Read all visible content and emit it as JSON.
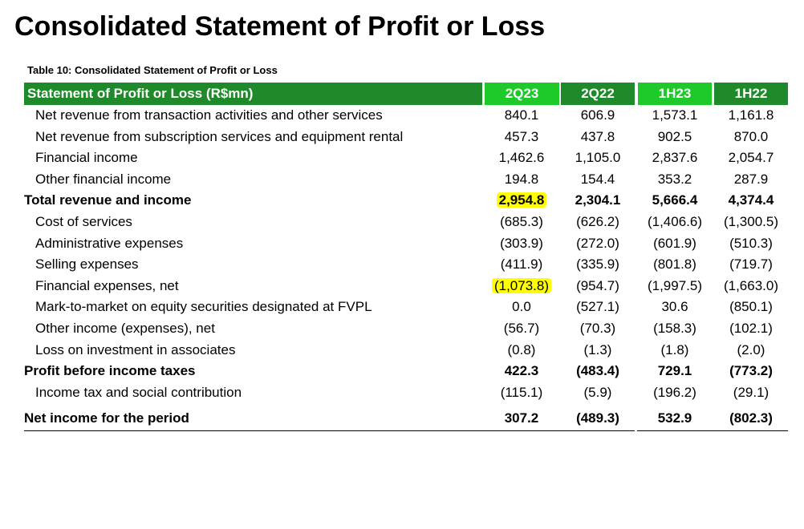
{
  "page": {
    "title": "Consolidated Statement of Profit or Loss",
    "caption": "Table 10: Consolidated Statement of Profit or Loss"
  },
  "table": {
    "header_label": "Statement of Profit or Loss (R$mn)",
    "columns": [
      "2Q23",
      "2Q22",
      "1H23",
      "1H22"
    ],
    "colors": {
      "dark_green": "#1e8a2a",
      "light_green": "#1ec92a",
      "highlight": "#ffff00"
    },
    "rows": [
      {
        "label": "Net revenue from transaction activities and other services",
        "values": [
          "840.1",
          "606.9",
          "1,573.1",
          "1,161.8"
        ]
      },
      {
        "label": "Net revenue from subscription services and equipment rental",
        "values": [
          "457.3",
          "437.8",
          "902.5",
          "870.0"
        ]
      },
      {
        "label": "Financial income",
        "values": [
          "1,462.6",
          "1,105.0",
          "2,837.6",
          "2,054.7"
        ]
      },
      {
        "label": "Other financial income",
        "values": [
          "194.8",
          "154.4",
          "353.2",
          "287.9"
        ]
      },
      {
        "label": "Total revenue and income",
        "values": [
          "2,954.8",
          "2,304.1",
          "5,666.4",
          "4,374.4"
        ]
      },
      {
        "label": "Cost of services",
        "values": [
          "(685.3)",
          "(626.2)",
          "(1,406.6)",
          "(1,300.5)"
        ]
      },
      {
        "label": "Administrative expenses",
        "values": [
          "(303.9)",
          "(272.0)",
          "(601.9)",
          "(510.3)"
        ]
      },
      {
        "label": "Selling expenses",
        "values": [
          "(411.9)",
          "(335.9)",
          "(801.8)",
          "(719.7)"
        ]
      },
      {
        "label": "Financial expenses, net",
        "values": [
          "(1,073.8)",
          "(954.7)",
          "(1,997.5)",
          "(1,663.0)"
        ]
      },
      {
        "label": "Mark-to-market on equity securities designated at FVPL",
        "values": [
          "0.0",
          "(527.1)",
          "30.6",
          "(850.1)"
        ]
      },
      {
        "label": "Other income (expenses), net",
        "values": [
          "(56.7)",
          "(70.3)",
          "(158.3)",
          "(102.1)"
        ]
      },
      {
        "label": "Loss on investment in associates",
        "values": [
          "(0.8)",
          "(1.3)",
          "(1.8)",
          "(2.0)"
        ]
      },
      {
        "label": "Profit before income taxes",
        "values": [
          "422.3",
          "(483.4)",
          "729.1",
          "(773.2)"
        ]
      },
      {
        "label": "Income tax and social contribution",
        "values": [
          "(115.1)",
          "(5.9)",
          "(196.2)",
          "(29.1)"
        ]
      },
      {
        "label": "Net income for the period",
        "values": [
          "307.2",
          "(489.3)",
          "532.9",
          "(802.3)"
        ]
      }
    ]
  }
}
